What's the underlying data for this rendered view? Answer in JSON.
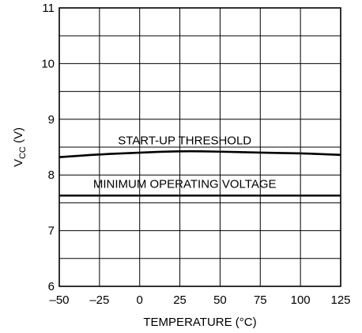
{
  "chart_data": {
    "type": "line",
    "title": "",
    "xlabel": "TEMPERATURE (°C)",
    "ylabel_main": "V",
    "ylabel_sub": "CC",
    "ylabel_unit": " (V)",
    "xlim": [
      -50,
      125
    ],
    "ylim": [
      6,
      11
    ],
    "xticks": [
      -50,
      -25,
      0,
      25,
      50,
      75,
      100,
      125
    ],
    "xtick_labels": [
      "–50",
      "–25",
      "0",
      "25",
      "50",
      "75",
      "100",
      "125"
    ],
    "yticks": [
      6,
      7,
      8,
      9,
      10,
      11
    ],
    "ytick_labels": [
      "6",
      "7",
      "8",
      "9",
      "10",
      "11"
    ],
    "grid": true,
    "grid_x_step": 25,
    "grid_y_step": 0.5,
    "series": [
      {
        "name": "START-UP THRESHOLD",
        "x": [
          -50,
          -25,
          0,
          25,
          50,
          75,
          100,
          125
        ],
        "y": [
          8.32,
          8.37,
          8.4,
          8.43,
          8.42,
          8.4,
          8.39,
          8.36
        ]
      },
      {
        "name": "MINIMUM OPERATING VOLTAGE",
        "x": [
          -50,
          125
        ],
        "y": [
          7.63,
          7.63
        ]
      }
    ],
    "annotations": [
      {
        "text": "START-UP THRESHOLD",
        "x": 28,
        "y": 8.55
      },
      {
        "text": "MINIMUM OPERATING VOLTAGE",
        "x": 28,
        "y": 7.77
      }
    ],
    "colors": {
      "line": "#000000",
      "grid": "#000000",
      "background": "#ffffff"
    }
  }
}
